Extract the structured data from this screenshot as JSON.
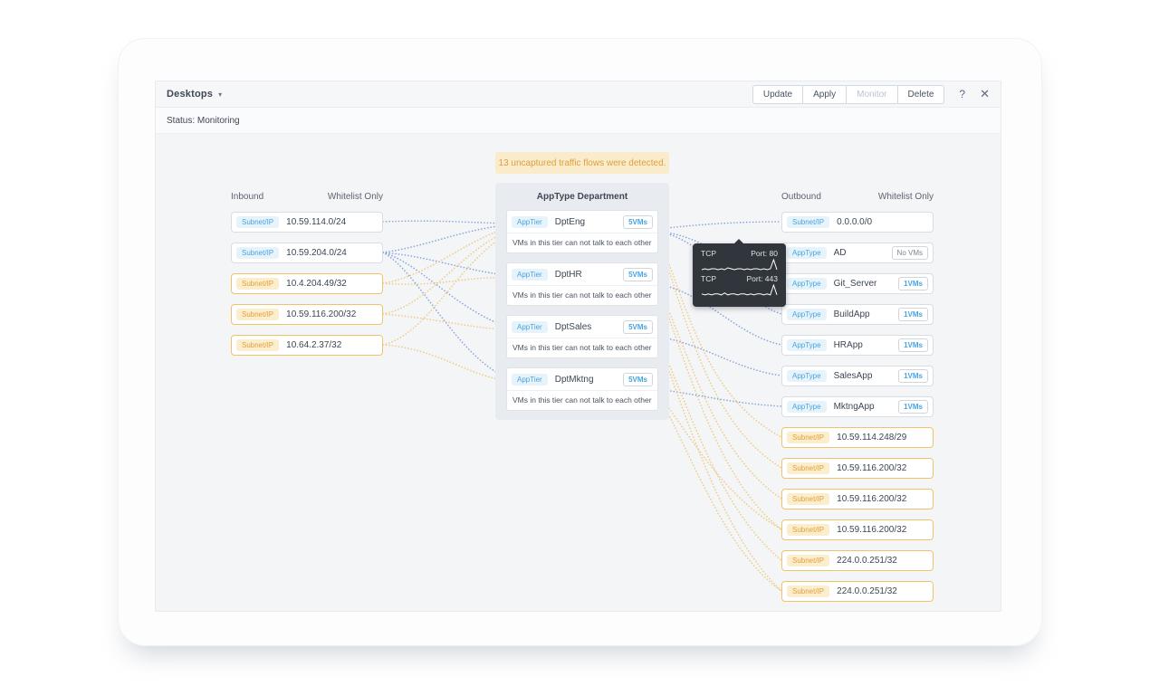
{
  "header": {
    "policy_name": "Desktops",
    "caret": "▾",
    "buttons": {
      "update": "Update",
      "apply": "Apply",
      "monitor": "Monitor",
      "delete": "Delete"
    },
    "help_icon": "?",
    "close_icon": "✕"
  },
  "status_bar": {
    "text": "Status: Monitoring"
  },
  "banner": {
    "text": "13 uncaptured traffic flows were detected."
  },
  "inbound": {
    "title": "Inbound",
    "mode": "Whitelist Only",
    "items": [
      {
        "badge": "Subnet/IP",
        "value": "10.59.114.0/24"
      },
      {
        "badge": "Subnet/IP",
        "value": "10.59.204.0/24"
      },
      {
        "badge": "Subnet/IP",
        "value": "10.4.204.49/32"
      },
      {
        "badge": "Subnet/IP",
        "value": "10.59.116.200/32"
      },
      {
        "badge": "Subnet/IP",
        "value": "10.64.2.37/32"
      }
    ]
  },
  "apptype": {
    "title": "AppType Department",
    "note": "VMs in this tier can not talk to each other",
    "tiers": [
      {
        "badge": "AppTier",
        "name": "DptEng",
        "vms": "5VMs"
      },
      {
        "badge": "AppTier",
        "name": "DptHR",
        "vms": "5VMs"
      },
      {
        "badge": "AppTier",
        "name": "DptSales",
        "vms": "5VMs"
      },
      {
        "badge": "AppTier",
        "name": "DptMktng",
        "vms": "5VMs"
      }
    ]
  },
  "outbound": {
    "title": "Outbound",
    "mode": "Whitelist Only",
    "items": [
      {
        "badge": "Subnet/IP",
        "value": "0.0.0.0/0"
      },
      {
        "badge": "AppType",
        "value": "AD",
        "vms": "No VMs"
      },
      {
        "badge": "AppType",
        "value": "Git_Server",
        "vms": "1VMs"
      },
      {
        "badge": "AppType",
        "value": "BuildApp",
        "vms": "1VMs"
      },
      {
        "badge": "AppType",
        "value": "HRApp",
        "vms": "1VMs"
      },
      {
        "badge": "AppType",
        "value": "SalesApp",
        "vms": "1VMs"
      },
      {
        "badge": "AppType",
        "value": "MktngApp",
        "vms": "1VMs"
      },
      {
        "badge": "Subnet/IP",
        "value": "10.59.114.248/29"
      },
      {
        "badge": "Subnet/IP",
        "value": "10.59.116.200/32"
      },
      {
        "badge": "Subnet/IP",
        "value": "10.59.116.200/32"
      },
      {
        "badge": "Subnet/IP",
        "value": "10.59.116.200/32"
      },
      {
        "badge": "Subnet/IP",
        "value": "224.0.0.251/32"
      },
      {
        "badge": "Subnet/IP",
        "value": "224.0.0.251/32"
      }
    ]
  },
  "tooltip": {
    "rows": [
      {
        "protocol": "TCP",
        "port": "Port: 80",
        "sparkline": [
          1,
          2,
          1,
          2,
          2,
          1,
          2,
          1,
          3,
          2,
          1,
          2,
          2,
          1,
          2,
          1,
          2,
          2,
          1,
          2,
          1,
          2,
          12,
          1
        ]
      },
      {
        "protocol": "TCP",
        "port": "Port: 443",
        "sparkline": [
          2,
          1,
          2,
          1,
          2,
          2,
          1,
          3,
          1,
          2,
          2,
          1,
          2,
          2,
          1,
          2,
          1,
          2,
          2,
          1,
          2,
          1,
          11,
          1
        ]
      }
    ]
  },
  "colors": {
    "accent_blue": "#4aa3de",
    "alert_orange": "#dfa23f",
    "line_blue": "#7396d6",
    "line_orange": "#edc272",
    "tooltip_bg": "#31363c"
  }
}
